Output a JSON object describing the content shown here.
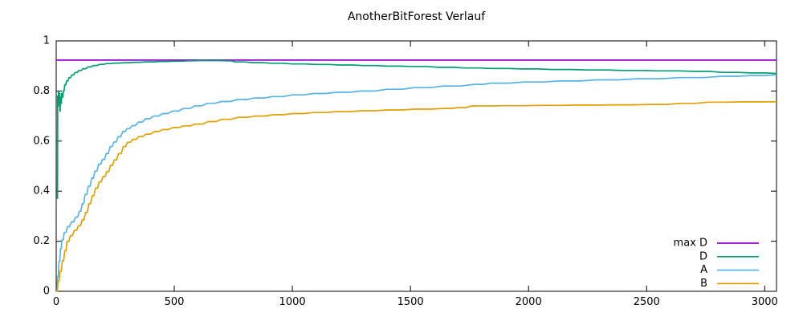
{
  "title": "AnotherBitForest Verlauf",
  "colors": {
    "background": "#ffffff",
    "axis": "#000000",
    "text": "#000000",
    "max_d": "#9400d3",
    "d": "#009e73",
    "a": "#56b4e9",
    "b": "#e69f00"
  },
  "legend": {
    "position": "bottom-right-inside",
    "entries": [
      {
        "label": "max D",
        "color": "#9400d3"
      },
      {
        "label": "D",
        "color": "#009e73"
      },
      {
        "label": "A",
        "color": "#56b4e9"
      },
      {
        "label": "B",
        "color": "#e69f00"
      }
    ]
  },
  "chart_data": {
    "type": "line",
    "title": "AnotherBitForest Verlauf",
    "xlabel": "",
    "ylabel": "",
    "xlim": [
      0,
      3050
    ],
    "ylim": [
      0,
      1
    ],
    "grid": false,
    "xticks": {
      "values": [
        0,
        500,
        1000,
        1500,
        2000,
        2500,
        3000
      ],
      "labels": [
        "0",
        "500",
        "1000",
        "1500",
        "2000",
        "2500",
        "3000"
      ]
    },
    "yticks": {
      "values": [
        0,
        0.2,
        0.4,
        0.6,
        0.8,
        1
      ],
      "labels": [
        "0",
        "0.2",
        "0.4",
        "0.6",
        "0.8",
        "1"
      ]
    },
    "legend_position": "bottom-right-inside",
    "series": [
      {
        "name": "max D",
        "color": "#9400d3",
        "steppy": false,
        "points": [
          [
            0,
            0.9235
          ],
          [
            3050,
            0.9235
          ]
        ]
      },
      {
        "name": "D",
        "color": "#009e73",
        "steppy": true,
        "points": [
          [
            5,
            0.37
          ],
          [
            6,
            0.78
          ],
          [
            8,
            0.74
          ],
          [
            10,
            0.8
          ],
          [
            12,
            0.755
          ],
          [
            14,
            0.79
          ],
          [
            16,
            0.72
          ],
          [
            18,
            0.775
          ],
          [
            20,
            0.75
          ],
          [
            23,
            0.79
          ],
          [
            26,
            0.775
          ],
          [
            30,
            0.8
          ],
          [
            36,
            0.825
          ],
          [
            44,
            0.84
          ],
          [
            54,
            0.853
          ],
          [
            66,
            0.864
          ],
          [
            80,
            0.874
          ],
          [
            96,
            0.882
          ],
          [
            114,
            0.889
          ],
          [
            134,
            0.896
          ],
          [
            158,
            0.902
          ],
          [
            184,
            0.9065
          ],
          [
            214,
            0.9095
          ],
          [
            248,
            0.9115
          ],
          [
            286,
            0.913
          ],
          [
            330,
            0.9148
          ],
          [
            380,
            0.9163
          ],
          [
            436,
            0.9178
          ],
          [
            500,
            0.9192
          ],
          [
            560,
            0.9205
          ],
          [
            600,
            0.9215
          ],
          [
            660,
            0.9215
          ],
          [
            720,
            0.9205
          ],
          [
            758,
            0.916
          ],
          [
            830,
            0.9135
          ],
          [
            910,
            0.911
          ],
          [
            1000,
            0.908
          ],
          [
            1100,
            0.906
          ],
          [
            1200,
            0.904
          ],
          [
            1300,
            0.9015
          ],
          [
            1400,
            0.8995
          ],
          [
            1500,
            0.898
          ],
          [
            1620,
            0.8945
          ],
          [
            1730,
            0.892
          ],
          [
            1840,
            0.89
          ],
          [
            1970,
            0.888
          ],
          [
            2100,
            0.886
          ],
          [
            2250,
            0.884
          ],
          [
            2400,
            0.882
          ],
          [
            2550,
            0.8805
          ],
          [
            2700,
            0.8785
          ],
          [
            2820,
            0.8745
          ],
          [
            2940,
            0.872
          ],
          [
            3050,
            0.87
          ]
        ]
      },
      {
        "name": "A",
        "color": "#56b4e9",
        "steppy": true,
        "points": [
          [
            0,
            0
          ],
          [
            6,
            0.06
          ],
          [
            12,
            0.12
          ],
          [
            18,
            0.17
          ],
          [
            24,
            0.205
          ],
          [
            34,
            0.235
          ],
          [
            48,
            0.258
          ],
          [
            64,
            0.277
          ],
          [
            82,
            0.296
          ],
          [
            98,
            0.32
          ],
          [
            110,
            0.35
          ],
          [
            122,
            0.387
          ],
          [
            136,
            0.42
          ],
          [
            150,
            0.452
          ],
          [
            164,
            0.48
          ],
          [
            180,
            0.508
          ],
          [
            196,
            0.527
          ],
          [
            212,
            0.55
          ],
          [
            228,
            0.578
          ],
          [
            244,
            0.596
          ],
          [
            262,
            0.617
          ],
          [
            282,
            0.638
          ],
          [
            300,
            0.65
          ],
          [
            322,
            0.662
          ],
          [
            348,
            0.676
          ],
          [
            378,
            0.689
          ],
          [
            412,
            0.7
          ],
          [
            450,
            0.71
          ],
          [
            492,
            0.72
          ],
          [
            538,
            0.73
          ],
          [
            588,
            0.741
          ],
          [
            640,
            0.751
          ],
          [
            700,
            0.758
          ],
          [
            768,
            0.766
          ],
          [
            840,
            0.772
          ],
          [
            916,
            0.778
          ],
          [
            1000,
            0.7845
          ],
          [
            1090,
            0.79
          ],
          [
            1186,
            0.795
          ],
          [
            1290,
            0.8
          ],
          [
            1400,
            0.807
          ],
          [
            1516,
            0.8135
          ],
          [
            1640,
            0.82
          ],
          [
            1770,
            0.8265
          ],
          [
            1840,
            0.8315
          ],
          [
            1980,
            0.836
          ],
          [
            2130,
            0.84
          ],
          [
            2290,
            0.8445
          ],
          [
            2460,
            0.849
          ],
          [
            2640,
            0.8535
          ],
          [
            2820,
            0.859
          ],
          [
            2940,
            0.862
          ],
          [
            3050,
            0.865
          ]
        ]
      },
      {
        "name": "B",
        "color": "#e69f00",
        "steppy": true,
        "points": [
          [
            0,
            0
          ],
          [
            8,
            0.04
          ],
          [
            16,
            0.08
          ],
          [
            26,
            0.122
          ],
          [
            36,
            0.162
          ],
          [
            46,
            0.2
          ],
          [
            60,
            0.222
          ],
          [
            76,
            0.243
          ],
          [
            94,
            0.262
          ],
          [
            110,
            0.285
          ],
          [
            124,
            0.315
          ],
          [
            138,
            0.35
          ],
          [
            152,
            0.382
          ],
          [
            166,
            0.412
          ],
          [
            182,
            0.437
          ],
          [
            198,
            0.458
          ],
          [
            214,
            0.478
          ],
          [
            230,
            0.503
          ],
          [
            246,
            0.525
          ],
          [
            264,
            0.55
          ],
          [
            284,
            0.578
          ],
          [
            302,
            0.595
          ],
          [
            324,
            0.607
          ],
          [
            350,
            0.618
          ],
          [
            380,
            0.628
          ],
          [
            414,
            0.638
          ],
          [
            452,
            0.646
          ],
          [
            494,
            0.654
          ],
          [
            540,
            0.661
          ],
          [
            590,
            0.668
          ],
          [
            644,
            0.678
          ],
          [
            702,
            0.687
          ],
          [
            770,
            0.695
          ],
          [
            842,
            0.7
          ],
          [
            918,
            0.705
          ],
          [
            1000,
            0.71
          ],
          [
            1090,
            0.714
          ],
          [
            1186,
            0.7175
          ],
          [
            1290,
            0.721
          ],
          [
            1400,
            0.7245
          ],
          [
            1516,
            0.7275
          ],
          [
            1640,
            0.7305
          ],
          [
            1700,
            0.7335
          ],
          [
            1760,
            0.7405
          ],
          [
            1900,
            0.7415
          ],
          [
            2050,
            0.7425
          ],
          [
            2200,
            0.7435
          ],
          [
            2360,
            0.745
          ],
          [
            2520,
            0.7465
          ],
          [
            2640,
            0.7505
          ],
          [
            2760,
            0.7555
          ],
          [
            2900,
            0.7565
          ],
          [
            3050,
            0.757
          ]
        ]
      }
    ]
  }
}
